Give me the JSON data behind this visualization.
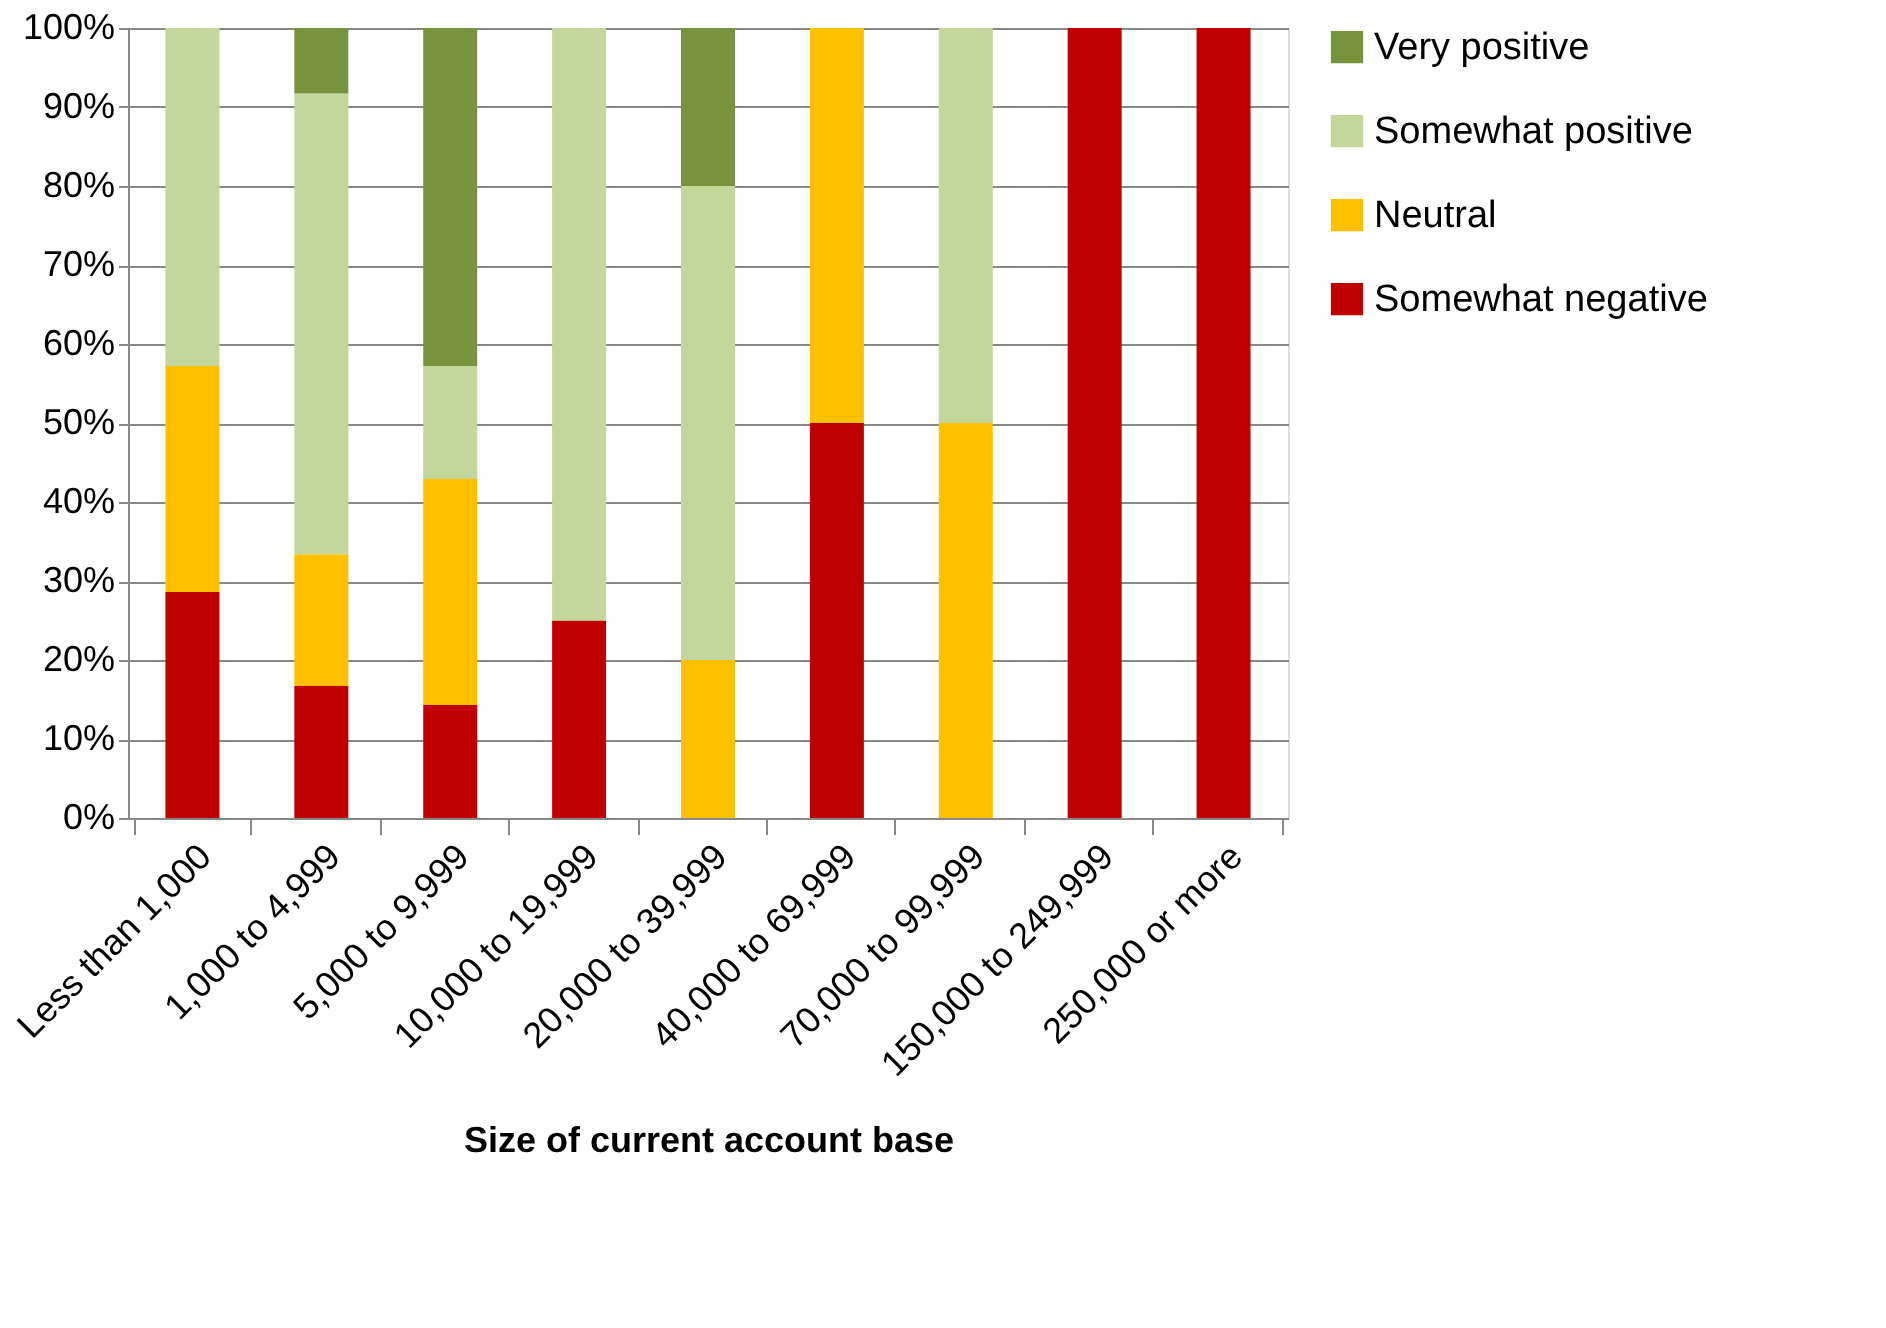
{
  "chart_data": {
    "type": "bar",
    "stacked": true,
    "xlabel": "Size of current account  base",
    "categories": [
      "Less than 1,000",
      "1,000 to 4,999",
      "5,000 to 9,999",
      "10,000 to 19,999",
      "20,000 to 39,999",
      "40,000 to 69,999",
      "70,000 to 99,999",
      "150,000 to 249,999",
      "250,000 or more"
    ],
    "series": [
      {
        "name": "Somewhat negative",
        "color": "#c00000",
        "values": [
          28.6,
          16.7,
          14.3,
          25,
          0,
          50,
          0,
          100,
          100
        ]
      },
      {
        "name": "Neutral",
        "color": "#ffc000",
        "values": [
          28.6,
          16.7,
          28.6,
          0,
          20,
          50,
          50,
          0,
          0
        ]
      },
      {
        "name": "Somewhat positive",
        "color": "#c3d69b",
        "values": [
          42.8,
          58.3,
          14.3,
          75,
          60,
          0,
          50,
          0,
          0
        ]
      },
      {
        "name": "Very positive",
        "color": "#77933c",
        "values": [
          0,
          8.3,
          42.8,
          0,
          20,
          0,
          0,
          0,
          0
        ]
      }
    ],
    "ylim": [
      0,
      100
    ],
    "yticks": [
      {
        "value": 0,
        "label": "0%"
      },
      {
        "value": 10,
        "label": "10%"
      },
      {
        "value": 20,
        "label": "20%"
      },
      {
        "value": 30,
        "label": "30%"
      },
      {
        "value": 40,
        "label": "40%"
      },
      {
        "value": 50,
        "label": "50%"
      },
      {
        "value": 60,
        "label": "60%"
      },
      {
        "value": 70,
        "label": "70%"
      },
      {
        "value": 80,
        "label": "80%"
      },
      {
        "value": 90,
        "label": "90%"
      },
      {
        "value": 100,
        "label": "100%"
      }
    ],
    "grid": "y",
    "legend": "right"
  }
}
